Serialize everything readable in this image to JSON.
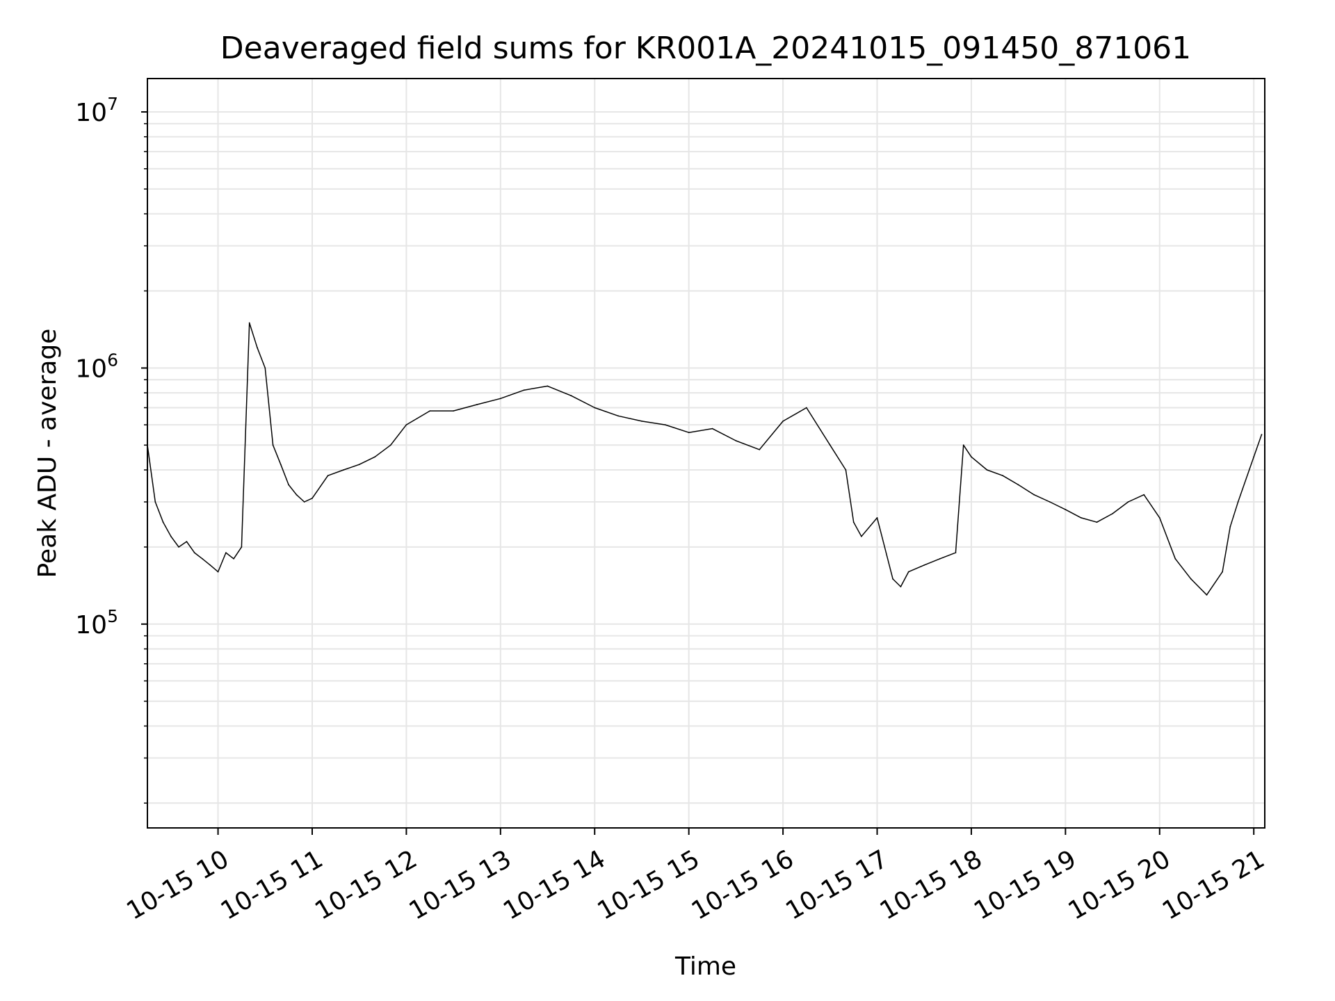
{
  "chart_data": {
    "type": "line",
    "title": "Deaveraged field sums for KR001A_20241015_091450_871061",
    "xlabel": "Time",
    "ylabel": "Peak ADU - average",
    "yscale": "log",
    "ylim": [
      16000,
      13500000
    ],
    "xlim": [
      "2024-10-15 09:15",
      "2024-10-15 21:07"
    ],
    "grid": true,
    "line_color": "#000000",
    "grid_color": "#e6e6e6",
    "x_ticks": [
      {
        "value": "2024-10-15 10:00",
        "label": "10-15 10"
      },
      {
        "value": "2024-10-15 11:00",
        "label": "10-15 11"
      },
      {
        "value": "2024-10-15 12:00",
        "label": "10-15 12"
      },
      {
        "value": "2024-10-15 13:00",
        "label": "10-15 13"
      },
      {
        "value": "2024-10-15 14:00",
        "label": "10-15 14"
      },
      {
        "value": "2024-10-15 15:00",
        "label": "10-15 15"
      },
      {
        "value": "2024-10-15 16:00",
        "label": "10-15 16"
      },
      {
        "value": "2024-10-15 17:00",
        "label": "10-15 17"
      },
      {
        "value": "2024-10-15 18:00",
        "label": "10-15 18"
      },
      {
        "value": "2024-10-15 19:00",
        "label": "10-15 19"
      },
      {
        "value": "2024-10-15 20:00",
        "label": "10-15 20"
      },
      {
        "value": "2024-10-15 21:00",
        "label": "10-15 21"
      }
    ],
    "y_ticks": [
      {
        "value": 100000,
        "base": "10",
        "exp": "5"
      },
      {
        "value": 1000000,
        "base": "10",
        "exp": "6"
      },
      {
        "value": 10000000,
        "base": "10",
        "exp": "7"
      }
    ],
    "series": [
      {
        "x": [
          "2024-10-15 09:15",
          "2024-10-15 09:20",
          "2024-10-15 09:25",
          "2024-10-15 09:30",
          "2024-10-15 09:35",
          "2024-10-15 09:40",
          "2024-10-15 09:45",
          "2024-10-15 09:50",
          "2024-10-15 09:55",
          "2024-10-15 10:00",
          "2024-10-15 10:05",
          "2024-10-15 10:10",
          "2024-10-15 10:15",
          "2024-10-15 10:20",
          "2024-10-15 10:25",
          "2024-10-15 10:30",
          "2024-10-15 10:35",
          "2024-10-15 10:40",
          "2024-10-15 10:45",
          "2024-10-15 10:50",
          "2024-10-15 10:55",
          "2024-10-15 11:00",
          "2024-10-15 11:10",
          "2024-10-15 11:20",
          "2024-10-15 11:30",
          "2024-10-15 11:40",
          "2024-10-15 11:50",
          "2024-10-15 12:00",
          "2024-10-15 12:15",
          "2024-10-15 12:30",
          "2024-10-15 12:45",
          "2024-10-15 13:00",
          "2024-10-15 13:15",
          "2024-10-15 13:30",
          "2024-10-15 13:45",
          "2024-10-15 14:00",
          "2024-10-15 14:15",
          "2024-10-15 14:30",
          "2024-10-15 14:45",
          "2024-10-15 15:00",
          "2024-10-15 15:15",
          "2024-10-15 15:30",
          "2024-10-15 15:45",
          "2024-10-15 16:00",
          "2024-10-15 16:15",
          "2024-10-15 16:30",
          "2024-10-15 16:40",
          "2024-10-15 16:45",
          "2024-10-15 16:50",
          "2024-10-15 17:00",
          "2024-10-15 17:10",
          "2024-10-15 17:15",
          "2024-10-15 17:20",
          "2024-10-15 17:30",
          "2024-10-15 17:40",
          "2024-10-15 17:50",
          "2024-10-15 17:55",
          "2024-10-15 18:00",
          "2024-10-15 18:10",
          "2024-10-15 18:20",
          "2024-10-15 18:30",
          "2024-10-15 18:40",
          "2024-10-15 18:50",
          "2024-10-15 19:00",
          "2024-10-15 19:10",
          "2024-10-15 19:20",
          "2024-10-15 19:30",
          "2024-10-15 19:40",
          "2024-10-15 19:50",
          "2024-10-15 20:00",
          "2024-10-15 20:10",
          "2024-10-15 20:20",
          "2024-10-15 20:30",
          "2024-10-15 20:40",
          "2024-10-15 20:45",
          "2024-10-15 20:50",
          "2024-10-15 21:00",
          "2024-10-15 21:05"
        ],
        "y": [
          500000,
          300000,
          250000,
          220000,
          200000,
          210000,
          190000,
          180000,
          170000,
          160000,
          190000,
          180000,
          200000,
          1500000,
          1200000,
          1000000,
          500000,
          420000,
          350000,
          320000,
          300000,
          310000,
          380000,
          400000,
          420000,
          450000,
          500000,
          600000,
          680000,
          680000,
          720000,
          760000,
          820000,
          850000,
          780000,
          700000,
          650000,
          620000,
          600000,
          560000,
          580000,
          520000,
          480000,
          620000,
          700000,
          500000,
          400000,
          250000,
          220000,
          260000,
          150000,
          140000,
          160000,
          170000,
          180000,
          190000,
          500000,
          450000,
          400000,
          380000,
          350000,
          320000,
          300000,
          280000,
          260000,
          250000,
          270000,
          300000,
          320000,
          260000,
          180000,
          150000,
          130000,
          160000,
          240000,
          300000,
          450000,
          550000
        ]
      }
    ]
  }
}
